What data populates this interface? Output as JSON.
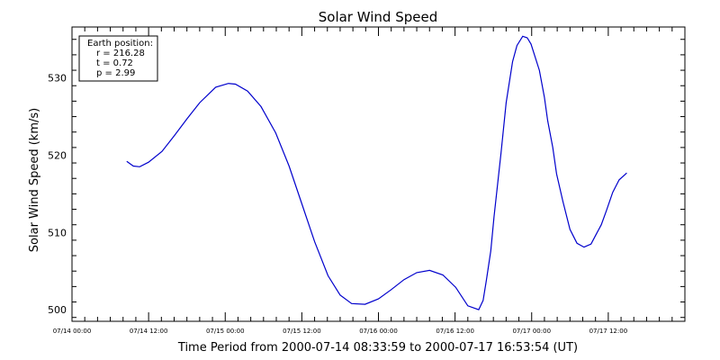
{
  "chart_data": {
    "type": "line",
    "title": "Solar Wind Speed",
    "xlabel": "Time Period from 2000-07-14 08:33:59 to 2000-07-17 16:53:54 (UT)",
    "ylabel": "Solar Wind Speed (km/s)",
    "x_unit": "hours from 07/14 00:00",
    "xlim": [
      0,
      96
    ],
    "ylim": [
      498.5,
      536.6
    ],
    "x_ticks": [
      {
        "x": 0,
        "label": "07/14 00:00"
      },
      {
        "x": 12,
        "label": "07/14 12:00"
      },
      {
        "x": 24,
        "label": "07/15 00:00"
      },
      {
        "x": 36,
        "label": "07/15 12:00"
      },
      {
        "x": 48,
        "label": "07/16 00:00"
      },
      {
        "x": 60,
        "label": "07/16 12:00"
      },
      {
        "x": 72,
        "label": "07/17 00:00"
      },
      {
        "x": 84,
        "label": "07/17 12:00"
      }
    ],
    "y_ticks": [
      {
        "y": 500,
        "label": "500"
      },
      {
        "y": 510,
        "label": "510"
      },
      {
        "y": 520,
        "label": "520"
      },
      {
        "y": 530,
        "label": "530"
      }
    ],
    "grid": false,
    "line_color": "#0000cc",
    "series": [
      {
        "x": [
          8.57,
          9.6,
          10.6,
          12.0,
          14.1,
          16.0,
          18.0,
          20.0,
          22.5,
          24.5,
          25.6,
          27.5,
          29.6,
          31.9,
          34.0,
          36.0,
          38.0,
          40.1,
          42.0,
          43.8,
          45.9,
          48.0,
          50.0,
          52.0,
          54.0,
          56.0,
          58.1,
          60.1,
          62.0,
          63.7,
          64.4,
          64.9,
          65.6,
          66.1,
          67.2,
          68.0,
          69.0,
          69.7,
          70.6,
          71.3,
          71.9,
          73.2,
          74.0,
          74.5,
          75.3,
          75.9,
          76.9,
          78.0,
          79.1,
          80.2,
          81.3,
          82.0,
          82.9,
          83.7,
          84.7,
          85.7,
          86.9
        ],
        "y": [
          519.2,
          518.6,
          518.5,
          519.1,
          520.5,
          522.5,
          524.7,
          526.8,
          528.8,
          529.3,
          529.2,
          528.3,
          526.3,
          522.9,
          518.6,
          513.7,
          508.8,
          504.4,
          501.9,
          500.8,
          500.7,
          501.4,
          502.6,
          503.9,
          504.8,
          505.1,
          504.5,
          502.9,
          500.5,
          500.0,
          501.2,
          503.8,
          507.6,
          512.0,
          520.3,
          526.8,
          532.1,
          534.2,
          535.4,
          535.2,
          534.4,
          531.0,
          527.5,
          524.5,
          521.0,
          517.6,
          514.0,
          510.4,
          508.6,
          508.1,
          508.5,
          509.6,
          511.0,
          512.8,
          515.2,
          516.8,
          517.7
        ]
      }
    ],
    "legend": {
      "title": "Earth position:",
      "lines": [
        "r = 216.28",
        "t = 0.72",
        "p = 2.99"
      ],
      "placement": "top-left"
    }
  }
}
